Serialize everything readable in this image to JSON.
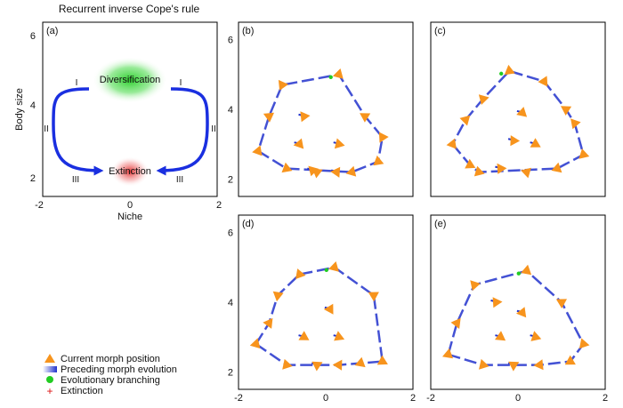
{
  "figure_title": "Recurrent inverse Cope's rule",
  "axis_labels": {
    "y": "Body size",
    "x": "Niche"
  },
  "ticks": {
    "x": [
      "-2",
      "0",
      "2"
    ],
    "y": [
      "2",
      "4",
      "6"
    ]
  },
  "colors": {
    "morph": "#f7941d",
    "trail": "#2233cc",
    "branching": "#22cc22",
    "extinction": "#dd1111",
    "arrow": "#1a2fe0"
  },
  "legend": [
    {
      "label": "Current morph position",
      "marker": "orange-triangle"
    },
    {
      "label": "Preceding morph evolution",
      "marker": "blue-gradient-bar"
    },
    {
      "label": "Evolutionary branching",
      "marker": "green-dot"
    },
    {
      "label": "Extinction",
      "marker": "red-plus"
    }
  ],
  "chart_data": [
    {
      "panel": "(a)",
      "type": "diagram",
      "xlim": [
        -2,
        2
      ],
      "ylim": [
        1.5,
        6.5
      ],
      "regions": [
        {
          "label": "Diversification",
          "x": 0,
          "y": 4.8,
          "color": "#22cc22"
        },
        {
          "label": "Extinction",
          "x": 0,
          "y": 2.2,
          "color": "#dd1111"
        }
      ],
      "phases": [
        "I",
        "II",
        "III"
      ]
    },
    {
      "panel": "(b)",
      "type": "scatter",
      "xlim": [
        -2,
        2
      ],
      "ylim": [
        1.5,
        6.5
      ],
      "morphs": [
        [
          -1.0,
          4.7
        ],
        [
          0.3,
          5.0
        ],
        [
          -1.3,
          3.8
        ],
        [
          -0.5,
          3.8
        ],
        [
          0.9,
          3.8
        ],
        [
          1.3,
          3.2
        ],
        [
          -0.6,
          3.0
        ],
        [
          0.3,
          3.0
        ],
        [
          -1.55,
          2.8
        ],
        [
          1.2,
          2.5
        ],
        [
          -0.9,
          2.3
        ],
        [
          -0.3,
          2.25
        ],
        [
          0.25,
          2.2
        ],
        [
          0.6,
          2.2
        ],
        [
          -0.2,
          2.2
        ]
      ]
    },
    {
      "panel": "(c)",
      "type": "scatter",
      "xlim": [
        -2,
        2
      ],
      "ylim": [
        1.5,
        6.5
      ],
      "morphs": [
        [
          -0.2,
          5.1
        ],
        [
          0.6,
          4.8
        ],
        [
          -0.8,
          4.3
        ],
        [
          1.1,
          4.0
        ],
        [
          0.1,
          3.9
        ],
        [
          -1.2,
          3.7
        ],
        [
          1.3,
          3.6
        ],
        [
          -0.1,
          3.1
        ],
        [
          0.4,
          3.0
        ],
        [
          -1.5,
          3.0
        ],
        [
          1.5,
          2.7
        ],
        [
          -1.1,
          2.4
        ],
        [
          -0.4,
          2.3
        ],
        [
          0.2,
          2.2
        ],
        [
          0.9,
          2.3
        ],
        [
          -0.9,
          2.2
        ]
      ]
    },
    {
      "panel": "(d)",
      "type": "scatter",
      "xlim": [
        -2,
        2
      ],
      "ylim": [
        1.5,
        6.5
      ],
      "morphs": [
        [
          -0.6,
          4.8
        ],
        [
          0.2,
          5.0
        ],
        [
          -1.1,
          4.2
        ],
        [
          1.1,
          4.2
        ],
        [
          0.1,
          3.8
        ],
        [
          -1.3,
          3.4
        ],
        [
          -0.5,
          3.0
        ],
        [
          0.3,
          3.0
        ],
        [
          -1.6,
          2.8
        ],
        [
          1.3,
          2.3
        ],
        [
          -0.9,
          2.2
        ],
        [
          -0.2,
          2.2
        ],
        [
          0.3,
          2.2
        ],
        [
          0.8,
          2.25
        ]
      ]
    },
    {
      "panel": "(e)",
      "type": "scatter",
      "xlim": [
        -2,
        2
      ],
      "ylim": [
        1.5,
        6.5
      ],
      "morphs": [
        [
          -1.0,
          4.5
        ],
        [
          0.2,
          4.9
        ],
        [
          -0.5,
          4.0
        ],
        [
          1.0,
          4.0
        ],
        [
          0.1,
          3.7
        ],
        [
          -1.4,
          3.4
        ],
        [
          -0.4,
          3.0
        ],
        [
          0.4,
          3.0
        ],
        [
          1.5,
          2.8
        ],
        [
          -1.6,
          2.5
        ],
        [
          1.2,
          2.3
        ],
        [
          -0.8,
          2.2
        ],
        [
          -0.1,
          2.2
        ],
        [
          0.5,
          2.2
        ]
      ]
    }
  ]
}
